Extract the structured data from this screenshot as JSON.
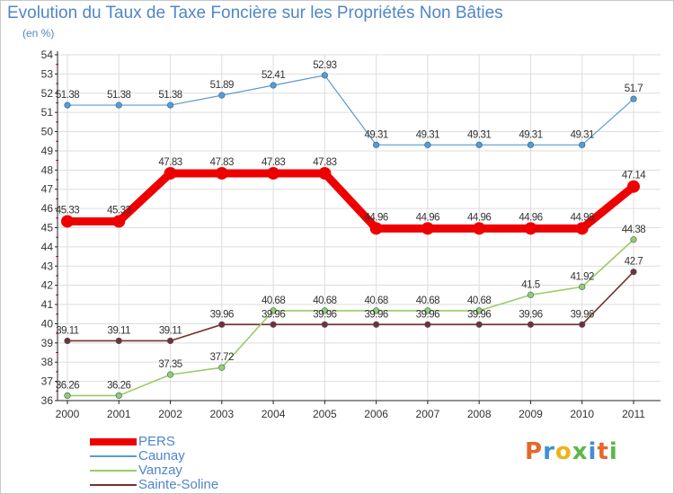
{
  "colors": {
    "background": "#ffffff",
    "plot_background": "#ffffff",
    "grid": "#dddddd",
    "axis": "#222222",
    "text": "#333333",
    "title": "#4f86c8",
    "tick_red": "#e8003f"
  },
  "logo": {
    "letters": [
      "P",
      "r",
      "o",
      "x",
      "i",
      "t",
      "i"
    ]
  },
  "chart_data": {
    "type": "line",
    "title": "Evolution du Taux de Taxe Foncière sur les Propriétés Non Bâties",
    "unit": "(en %)",
    "xlabel": "",
    "ylabel": "",
    "x": [
      "2000",
      "2001",
      "2002",
      "2003",
      "2004",
      "2005",
      "2006",
      "2007",
      "2008",
      "2009",
      "2010",
      "2011"
    ],
    "ylim": [
      36,
      54
    ],
    "yticks": [
      "36",
      "37",
      "38",
      "39",
      "40",
      "41",
      "42",
      "43",
      "44",
      "45",
      "46",
      "47",
      "48",
      "49",
      "50",
      "51",
      "52",
      "53",
      "54"
    ],
    "grid": true,
    "legend_position": "bottom-left",
    "series": [
      {
        "name": "PERS",
        "color": "#ee0000",
        "values": [
          45.33,
          45.33,
          47.83,
          47.83,
          47.83,
          47.83,
          44.96,
          44.96,
          44.96,
          44.96,
          44.96,
          47.14
        ],
        "labels": [
          "45.33",
          "45.33",
          "47.83",
          "47.83",
          "47.83",
          "47.83",
          "44.96",
          "44.96",
          "44.96",
          "44.96",
          "44.96",
          "47.14"
        ]
      },
      {
        "name": "Caunay",
        "color": "#5a9bd0",
        "values": [
          51.38,
          51.38,
          51.38,
          51.89,
          52.41,
          52.93,
          49.31,
          49.31,
          49.31,
          49.31,
          49.31,
          51.7
        ],
        "labels": [
          "51.38",
          "51.38",
          "51.38",
          "51.89",
          "52.41",
          "52.93",
          "49.31",
          "49.31",
          "49.31",
          "49.31",
          "49.31",
          "51.7"
        ]
      },
      {
        "name": "Vanzay",
        "color": "#99cc66",
        "values": [
          36.26,
          36.26,
          37.35,
          37.72,
          40.68,
          40.68,
          40.68,
          40.68,
          40.68,
          41.5,
          41.92,
          44.38
        ],
        "labels": [
          "36.26",
          "36.26",
          "37.35",
          "37.72",
          "40.68",
          "40.68",
          "40.68",
          "40.68",
          "40.68",
          "41.5",
          "41.92",
          "44.38"
        ]
      },
      {
        "name": "Sainte-Soline",
        "color": "#7a2f2f",
        "values": [
          39.11,
          39.11,
          39.11,
          39.96,
          39.96,
          39.96,
          39.96,
          39.96,
          39.96,
          39.96,
          39.96,
          42.7
        ],
        "labels": [
          "39.11",
          "39.11",
          "39.11",
          "39.96",
          "39.96",
          "39.96",
          "39.96",
          "39.96",
          "39.96",
          "39.96",
          "39.96",
          "42.7"
        ]
      }
    ]
  }
}
